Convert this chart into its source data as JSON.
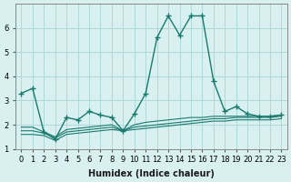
{
  "xlabel": "Humidex (Indice chaleur)",
  "x": [
    0,
    1,
    2,
    3,
    4,
    5,
    6,
    7,
    8,
    9,
    10,
    11,
    12,
    13,
    14,
    15,
    16,
    17,
    18,
    19,
    20,
    21,
    22,
    23
  ],
  "line1": [
    3.3,
    3.5,
    1.7,
    1.4,
    2.3,
    2.2,
    2.55,
    2.4,
    2.3,
    1.75,
    2.45,
    3.3,
    5.6,
    6.5,
    5.7,
    6.5,
    6.5,
    3.8,
    2.55,
    2.75,
    2.45,
    2.35,
    2.35,
    2.4
  ],
  "line2": [
    1.9,
    1.9,
    1.7,
    1.5,
    1.8,
    1.85,
    1.9,
    1.95,
    2.0,
    1.75,
    2.0,
    2.1,
    2.15,
    2.2,
    2.25,
    2.3,
    2.3,
    2.35,
    2.35,
    2.35,
    2.35,
    2.35,
    2.35,
    2.4
  ],
  "line3": [
    1.75,
    1.75,
    1.65,
    1.45,
    1.7,
    1.75,
    1.8,
    1.85,
    1.9,
    1.75,
    1.9,
    1.95,
    2.0,
    2.05,
    2.1,
    2.15,
    2.2,
    2.25,
    2.25,
    2.3,
    2.3,
    2.3,
    2.3,
    2.35
  ],
  "line4": [
    1.6,
    1.6,
    1.55,
    1.35,
    1.6,
    1.65,
    1.7,
    1.75,
    1.8,
    1.75,
    1.8,
    1.85,
    1.9,
    1.95,
    2.0,
    2.05,
    2.1,
    2.15,
    2.15,
    2.2,
    2.2,
    2.2,
    2.2,
    2.25
  ],
  "line_color": "#1a7a6e",
  "bg_color": "#d8f0f0",
  "grid_color": "#b0d8d8",
  "ylim": [
    1.0,
    7.0
  ],
  "xlim": [
    0,
    23
  ]
}
